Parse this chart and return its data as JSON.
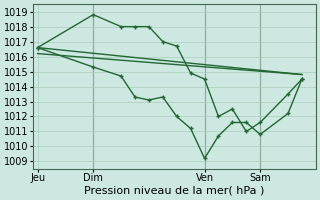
{
  "background_color": "#cce8e0",
  "grid_color": "#aaccbb",
  "line_color": "#226633",
  "ylabel_text": "Pression niveau de la mer( hPa )",
  "xtick_labels": [
    "Jeu",
    "Dim",
    "Ven",
    "Sam"
  ],
  "xtick_positions": [
    0,
    24,
    72,
    96
  ],
  "ylim": [
    1008.5,
    1019.5
  ],
  "yticks": [
    1009,
    1010,
    1011,
    1012,
    1013,
    1014,
    1015,
    1016,
    1017,
    1018,
    1019
  ],
  "line1": {
    "x": [
      0,
      24,
      36,
      42,
      48,
      54,
      60,
      66,
      72,
      78,
      84,
      90,
      96,
      108,
      114
    ],
    "y": [
      1016.6,
      1018.8,
      1018.0,
      1018.0,
      1018.0,
      1017.0,
      1016.7,
      1014.9,
      1014.5,
      1012.0,
      1012.5,
      1011.0,
      1011.6,
      1013.5,
      1014.5
    ]
  },
  "line2": {
    "x": [
      0,
      24,
      36,
      42,
      48,
      54,
      60,
      66,
      72,
      78,
      84,
      90,
      96,
      108,
      114
    ],
    "y": [
      1016.6,
      1015.3,
      1014.7,
      1013.3,
      1013.1,
      1013.3,
      1012.0,
      1011.2,
      1009.2,
      1010.7,
      1011.6,
      1011.6,
      1010.8,
      1012.2,
      1014.5
    ]
  },
  "line3_x": [
    0,
    114
  ],
  "line3_y": [
    1016.6,
    1014.8
  ],
  "line4_x": [
    0,
    114
  ],
  "line4_y": [
    1016.2,
    1014.8
  ],
  "xlim": [
    -2,
    120
  ],
  "vline_positions": [
    24,
    72,
    96
  ],
  "fontsize": 8,
  "figsize": [
    3.2,
    2.0
  ],
  "dpi": 100
}
